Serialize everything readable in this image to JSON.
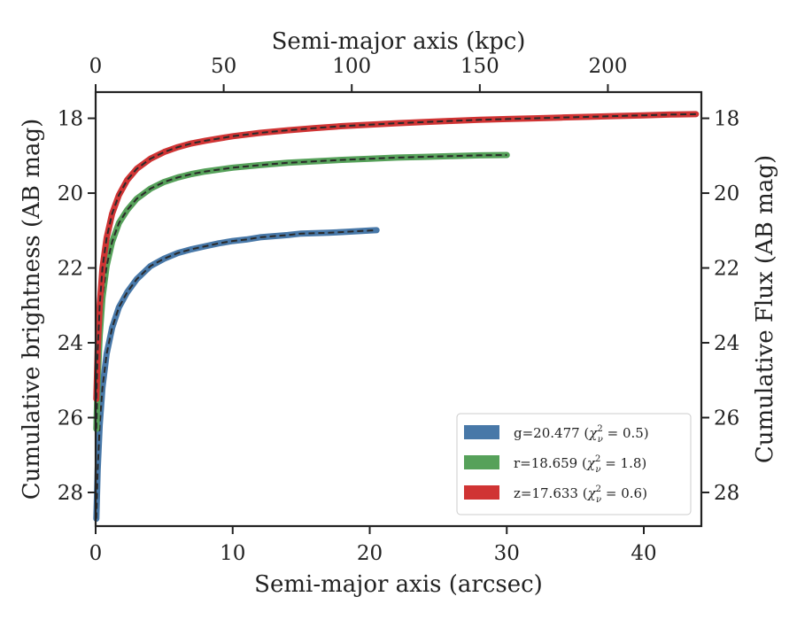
{
  "chart_data": {
    "type": "line",
    "xlabel": "Semi-major axis (arcsec)",
    "x2label": "Semi-major axis (kpc)",
    "ylabel": "Cumulative brightness (AB mag)",
    "y2label": "Cumulative Flux (AB mag)",
    "xlim": [
      0,
      44.2
    ],
    "ylim": [
      28.9,
      17.3
    ],
    "x2lim": [
      0,
      236.5
    ],
    "y_inverted": true,
    "xticks": [
      0,
      10,
      20,
      30,
      40
    ],
    "x2ticks": [
      0,
      50,
      100,
      150,
      200
    ],
    "yticks": [
      18,
      20,
      22,
      24,
      26,
      28
    ],
    "grid": false,
    "legend_position": "bottom-right",
    "series": [
      {
        "name": "g=20.477 (χ²ν = 0.5)",
        "label_main": "g=20.477 (",
        "label_chi": "χ",
        "label_eq": " = 0.5)",
        "color": "#4878a8",
        "x": [
          0.05,
          0.15,
          0.3,
          0.5,
          0.8,
          1.2,
          1.7,
          2.3,
          3.0,
          4.0,
          5.0,
          6.0,
          7.0,
          8.0,
          9.0,
          10.0,
          11.0,
          12.0,
          13.0,
          14.0,
          15.0,
          16.0,
          17.0,
          18.0,
          19.0,
          20.0,
          20.5
        ],
        "y": [
          28.7,
          27.4,
          26.2,
          25.2,
          24.3,
          23.6,
          23.05,
          22.65,
          22.3,
          21.95,
          21.75,
          21.6,
          21.5,
          21.42,
          21.34,
          21.28,
          21.24,
          21.18,
          21.15,
          21.12,
          21.08,
          21.07,
          21.06,
          21.04,
          21.02,
          21.0,
          20.99
        ]
      },
      {
        "name": "r=18.659 (χ²ν = 1.8)",
        "label_main": "r=18.659 (",
        "label_chi": "χ",
        "label_eq": " = 1.8)",
        "color": "#56a15a",
        "x": [
          0.05,
          0.15,
          0.3,
          0.5,
          0.8,
          1.2,
          1.7,
          2.3,
          3.0,
          4.0,
          5.0,
          6.0,
          7.0,
          8.0,
          10.0,
          12.0,
          14.0,
          16.0,
          18.0,
          20.0,
          22.0,
          24.0,
          26.0,
          28.0,
          30.0
        ],
        "y": [
          26.3,
          25.0,
          23.8,
          22.8,
          21.95,
          21.3,
          20.8,
          20.45,
          20.15,
          19.88,
          19.7,
          19.58,
          19.49,
          19.42,
          19.32,
          19.25,
          19.19,
          19.15,
          19.11,
          19.08,
          19.05,
          19.03,
          19.01,
          18.99,
          18.98
        ]
      },
      {
        "name": "z=17.633 (χ²ν = 0.6)",
        "label_main": "z=17.633 (",
        "label_chi": "χ",
        "label_eq": " = 0.6)",
        "color": "#d03434",
        "x": [
          0.05,
          0.15,
          0.3,
          0.5,
          0.8,
          1.2,
          1.7,
          2.3,
          3.0,
          4.0,
          5.0,
          6.0,
          7.0,
          8.0,
          10.0,
          12.0,
          14.0,
          16.0,
          18.0,
          20.0,
          22.0,
          24.0,
          26.0,
          28.0,
          30.0,
          32.0,
          34.0,
          36.0,
          38.0,
          40.0,
          42.0,
          43.8
        ],
        "y": [
          25.5,
          24.2,
          23.0,
          22.0,
          21.2,
          20.55,
          20.05,
          19.65,
          19.35,
          19.08,
          18.9,
          18.77,
          18.67,
          18.6,
          18.48,
          18.39,
          18.32,
          18.26,
          18.21,
          18.17,
          18.13,
          18.1,
          18.07,
          18.04,
          18.02,
          18.0,
          17.98,
          17.96,
          17.94,
          17.92,
          17.9,
          17.89
        ]
      }
    ]
  }
}
